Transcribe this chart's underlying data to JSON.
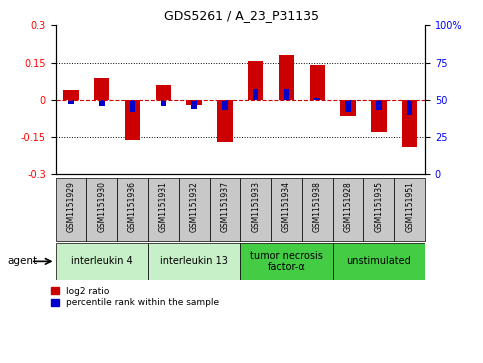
{
  "title": "GDS5261 / A_23_P31135",
  "samples": [
    "GSM1151929",
    "GSM1151930",
    "GSM1151936",
    "GSM1151931",
    "GSM1151932",
    "GSM1151937",
    "GSM1151933",
    "GSM1151934",
    "GSM1151938",
    "GSM1151928",
    "GSM1151935",
    "GSM1151951"
  ],
  "log2_ratio": [
    0.04,
    0.09,
    -0.16,
    0.06,
    -0.02,
    -0.17,
    0.155,
    0.18,
    0.14,
    -0.065,
    -0.13,
    -0.19
  ],
  "percentile_rank": [
    47,
    46,
    42,
    46,
    44,
    43,
    57,
    57,
    51,
    42,
    43,
    40
  ],
  "groups": [
    {
      "label": "interleukin 4",
      "indices": [
        0,
        1,
        2
      ],
      "color": "#c8f0c8"
    },
    {
      "label": "interleukin 13",
      "indices": [
        3,
        4,
        5
      ],
      "color": "#c8f0c8"
    },
    {
      "label": "tumor necrosis\nfactor-α",
      "indices": [
        6,
        7,
        8
      ],
      "color": "#44cc44"
    },
    {
      "label": "unstimulated",
      "indices": [
        9,
        10,
        11
      ],
      "color": "#44cc44"
    }
  ],
  "ylim": [
    -0.3,
    0.3
  ],
  "yticks_left": [
    -0.3,
    -0.15,
    0,
    0.15,
    0.3
  ],
  "bar_color_red": "#cc0000",
  "bar_color_blue": "#0000cc",
  "bar_width": 0.5,
  "blue_bar_width": 0.18,
  "sample_bg": "#c8c8c8",
  "sample_label_fontsize": 5.5,
  "group_label_fontsize": 7.0,
  "title_fontsize": 9
}
